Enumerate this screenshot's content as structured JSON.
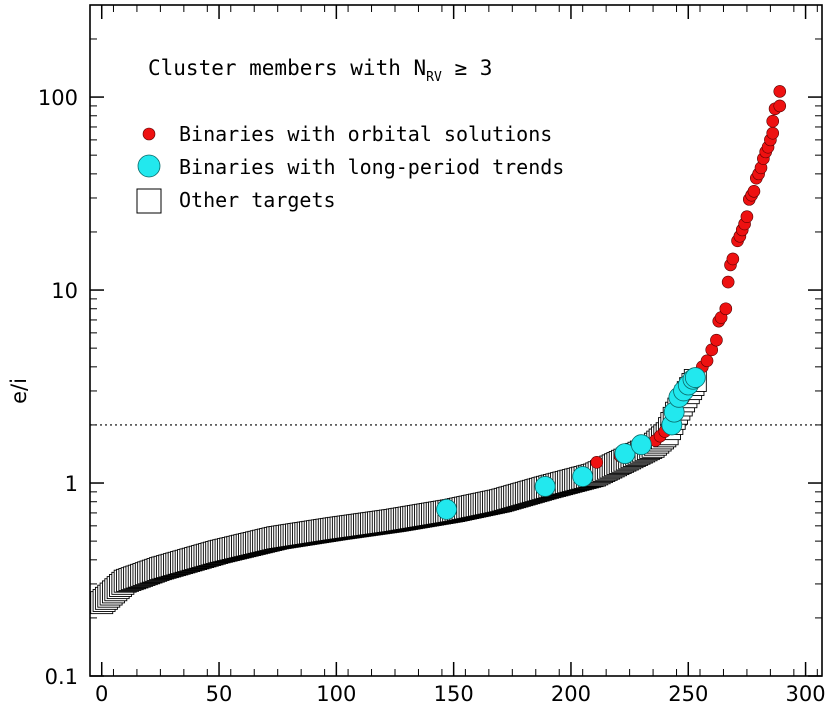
{
  "chart_data": {
    "type": "scatter",
    "title_parts": {
      "main": "Cluster members with N",
      "sub": "RV",
      "tail": " ≥ 3"
    },
    "xlabel": "",
    "ylabel": "e/i",
    "xlim": [
      -5,
      307
    ],
    "ylim": [
      0.1,
      300
    ],
    "yscale": "log",
    "grid": false,
    "legend_position": "top-left",
    "threshold_line": 2,
    "x_ticks": [
      0,
      50,
      100,
      150,
      200,
      250,
      300
    ],
    "x_tick_labels": [
      "0",
      "50",
      "100",
      "150",
      "200",
      "250",
      "300"
    ],
    "y_ticks": [
      0.1,
      1,
      10,
      100
    ],
    "y_tick_labels": [
      "0.1",
      "1",
      "10",
      "100"
    ],
    "other_targets_envelope": [
      [
        0,
        0.24
      ],
      [
        10,
        0.31
      ],
      [
        25,
        0.36
      ],
      [
        50,
        0.44
      ],
      [
        75,
        0.52
      ],
      [
        100,
        0.58
      ],
      [
        125,
        0.64
      ],
      [
        150,
        0.72
      ],
      [
        170,
        0.81
      ],
      [
        190,
        0.95
      ],
      [
        210,
        1.1
      ],
      [
        225,
        1.35
      ],
      [
        235,
        1.55
      ],
      [
        241,
        1.8
      ],
      [
        245,
        2.3
      ],
      [
        249,
        2.8
      ],
      [
        253,
        3.4
      ]
    ],
    "series": [
      {
        "name": "Binaries with orbital solutions",
        "color": "#ee1111",
        "marker": "small-circle",
        "points": [
          [
            211,
            1.28
          ],
          [
            221,
            1.38
          ],
          [
            236,
            1.66
          ],
          [
            238,
            1.75
          ],
          [
            240,
            1.85
          ],
          [
            246,
            2.65
          ],
          [
            248,
            2.75
          ],
          [
            249,
            3.0
          ],
          [
            251,
            3.3
          ],
          [
            252,
            3.5
          ],
          [
            254,
            3.7
          ],
          [
            256,
            4.0
          ],
          [
            258,
            4.3
          ],
          [
            260,
            4.9
          ],
          [
            262,
            5.5
          ],
          [
            263,
            6.9
          ],
          [
            264,
            7.2
          ],
          [
            266,
            8.0
          ],
          [
            267,
            11.0
          ],
          [
            268,
            13.5
          ],
          [
            269,
            14.5
          ],
          [
            271,
            18.0
          ],
          [
            272,
            19.0
          ],
          [
            273,
            20.5
          ],
          [
            274,
            22.0
          ],
          [
            275,
            24.0
          ],
          [
            276,
            29.5
          ],
          [
            277,
            31.0
          ],
          [
            278,
            32.5
          ],
          [
            279,
            38.0
          ],
          [
            280,
            40.0
          ],
          [
            281,
            43.0
          ],
          [
            282,
            48.0
          ],
          [
            283,
            52.0
          ],
          [
            284,
            55.0
          ],
          [
            285,
            60.0
          ],
          [
            286,
            65.0
          ],
          [
            286,
            75.0
          ],
          [
            287,
            87.0
          ],
          [
            289,
            90.0
          ],
          [
            289,
            107.0
          ]
        ]
      },
      {
        "name": "Binaries with long-period trends",
        "color": "#22e8ee",
        "marker": "large-circle",
        "points": [
          [
            147,
            0.73
          ],
          [
            189,
            0.96
          ],
          [
            205,
            1.08
          ],
          [
            223,
            1.42
          ],
          [
            230,
            1.58
          ],
          [
            243,
            2.0
          ],
          [
            244,
            2.33
          ],
          [
            246,
            2.78
          ],
          [
            248,
            3.0
          ],
          [
            250,
            3.22
          ],
          [
            252,
            3.45
          ],
          [
            253,
            3.52
          ]
        ]
      },
      {
        "name": "Other targets",
        "color": "#000000",
        "marker": "open-square",
        "points": []
      }
    ]
  }
}
